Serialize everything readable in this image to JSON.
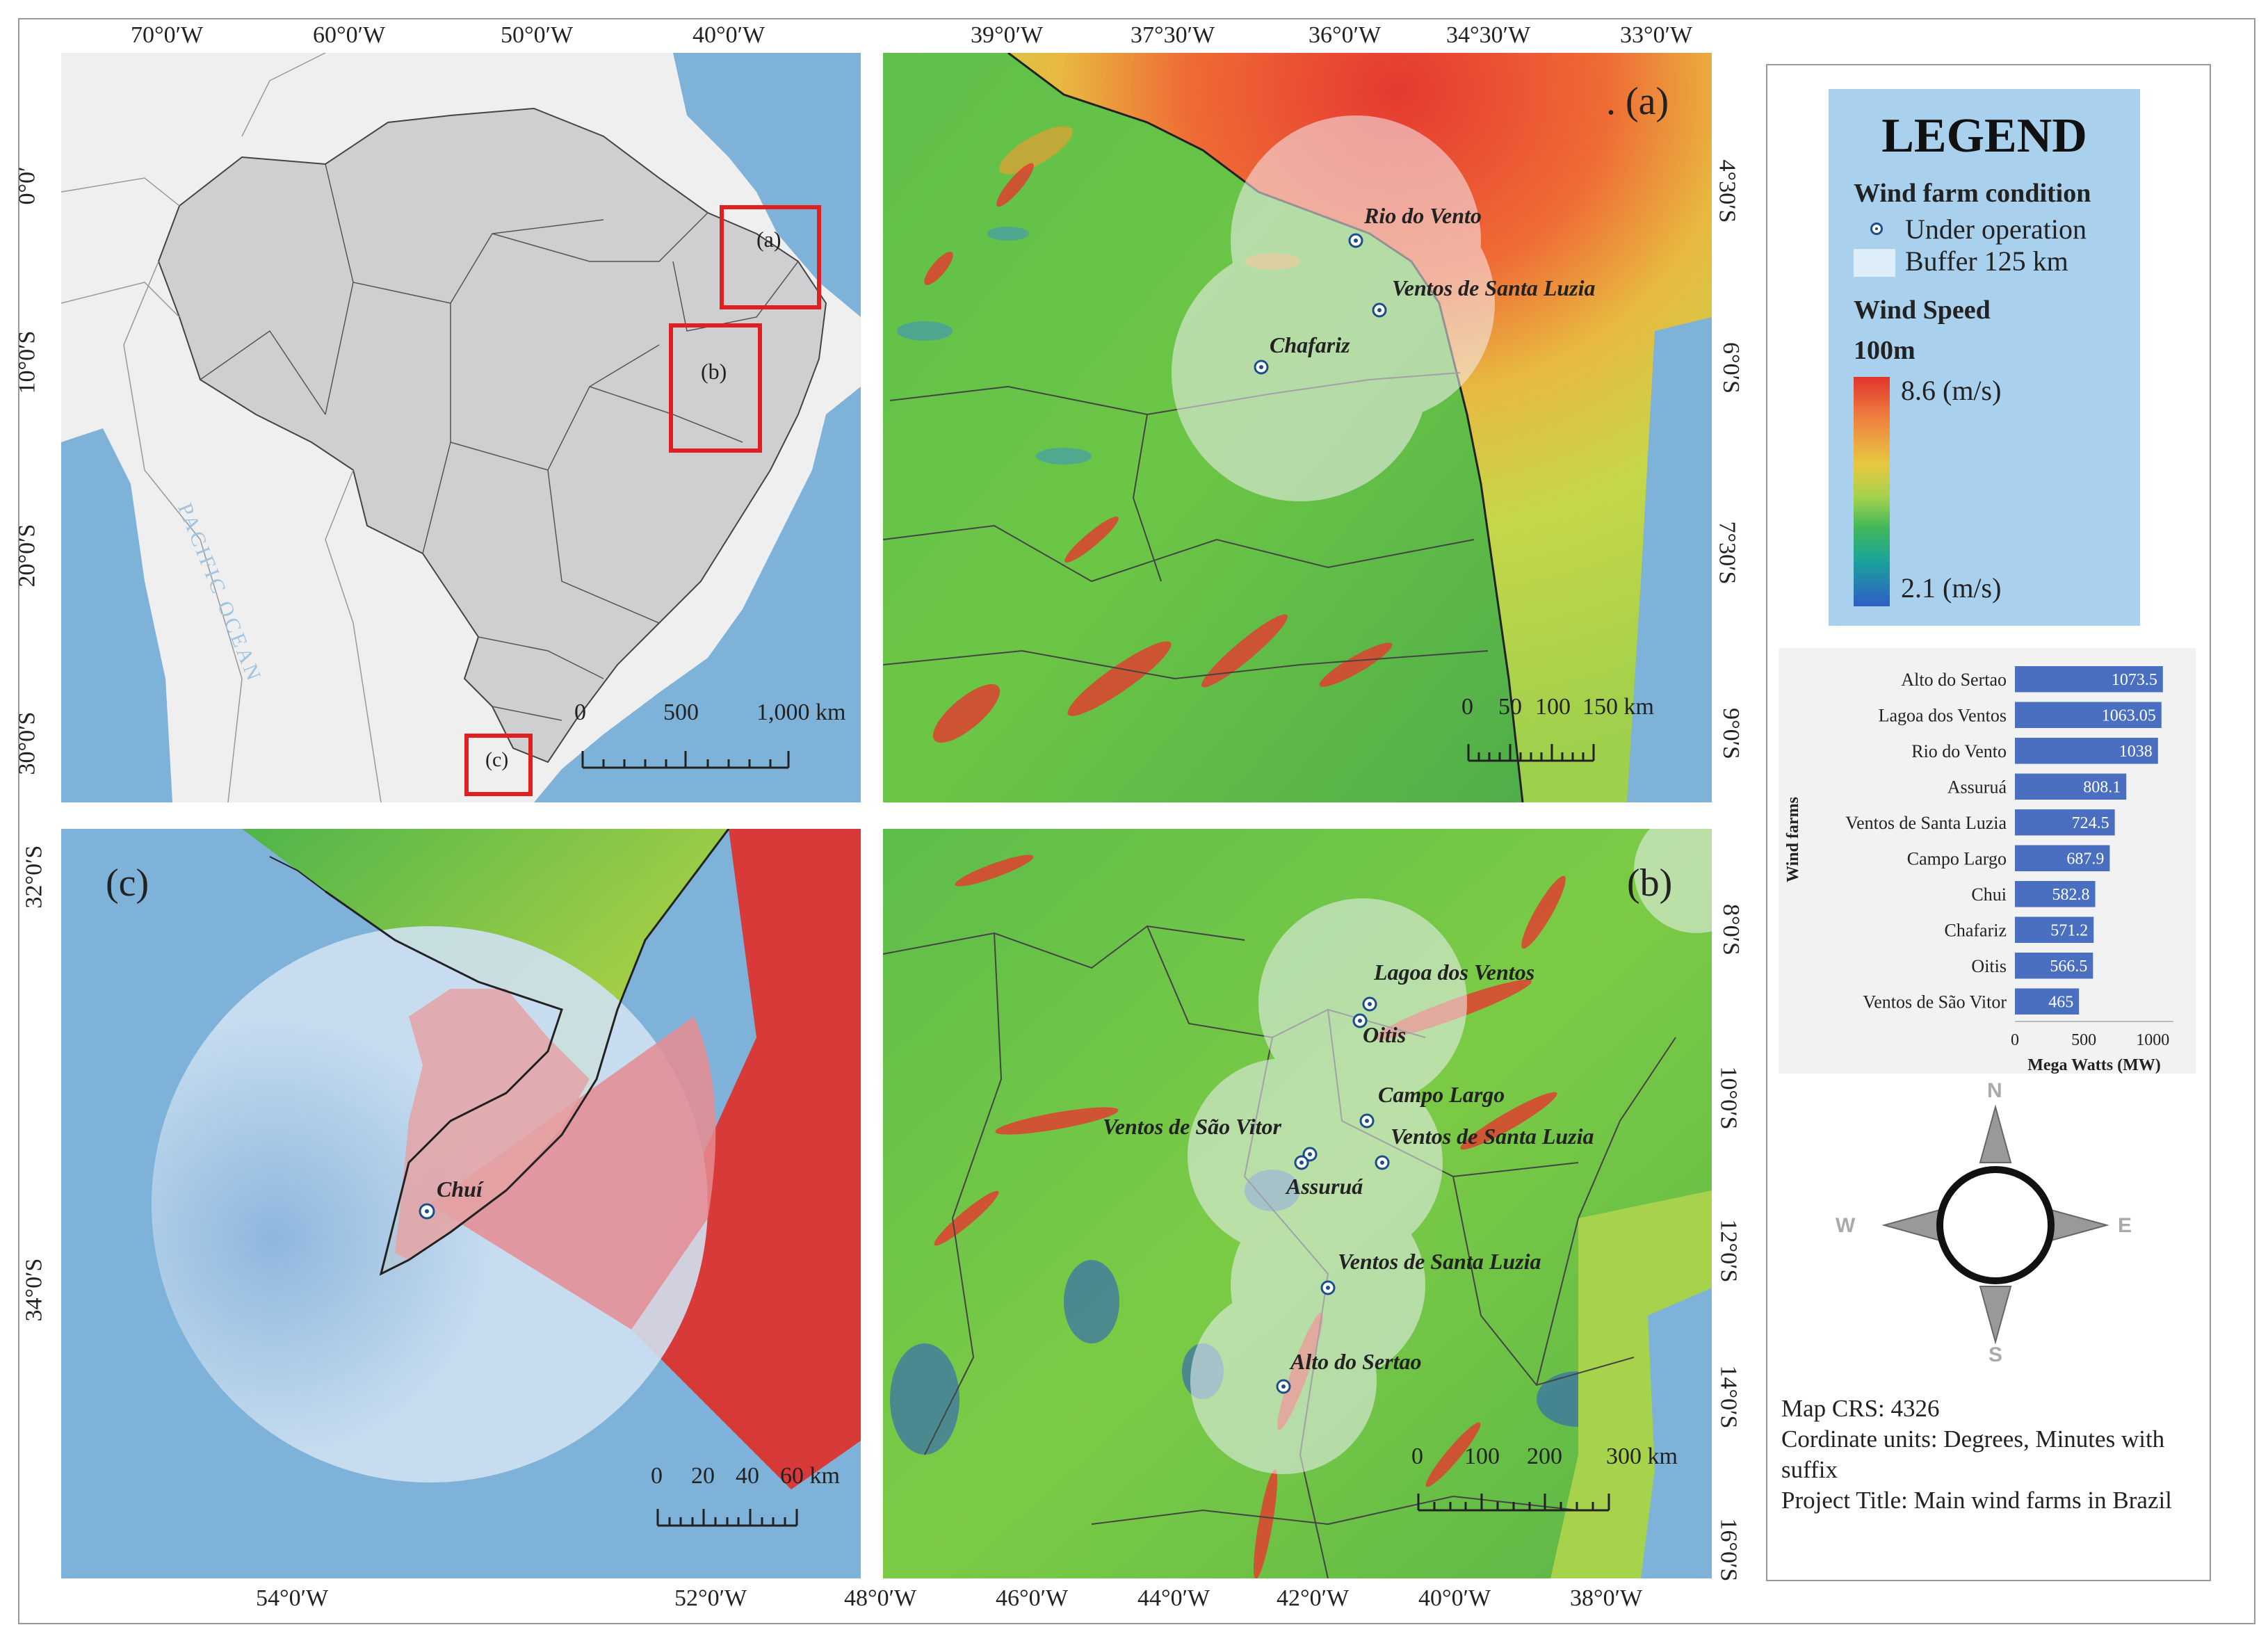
{
  "inset_map": {
    "top_axis": [
      "70°0′W",
      "60°0′W",
      "50°0′W",
      "40°0′W"
    ],
    "left_axis": [
      "0°0′",
      "10°0′S",
      "20°0′S",
      "30°0′S"
    ],
    "ocean_label": "PACIFIC OCEAN",
    "boxes": [
      "(a)",
      "(b)",
      "(c)"
    ],
    "scale": [
      "0",
      "500",
      "1,000 km"
    ]
  },
  "panel_a": {
    "tag": ". (a)",
    "top_axis": [
      "39°0′W",
      "37°30′W",
      "36°0′W",
      "34°30′W",
      "33°0′W"
    ],
    "right_axis": [
      "4°30′S",
      "6°0′S",
      "7°30′S",
      "9°0′S"
    ],
    "farms": [
      "Rio do Vento",
      "Ventos de Santa Luzia",
      "Chafariz"
    ],
    "scale": [
      "0",
      "50",
      "100",
      "150 km"
    ]
  },
  "panel_c": {
    "tag": "(c)",
    "left_axis": [
      "32°0′S",
      "34°0′S"
    ],
    "bottom_axis": [
      "54°0′W",
      "52°0′W"
    ],
    "farms": [
      "Chuí"
    ],
    "scale": [
      "0",
      "20",
      "40",
      "60 km"
    ]
  },
  "panel_b": {
    "tag": "(b)",
    "bottom_axis": [
      "48°0′W",
      "46°0′W",
      "44°0′W",
      "42°0′W",
      "40°0′W",
      "38°0′W"
    ],
    "right_axis": [
      "8°0′S",
      "10°0′S",
      "12°0′S",
      "14°0′S",
      "16°0′S"
    ],
    "farms": [
      "Lagoa dos Ventos",
      "Oitis",
      "Campo Largo",
      "Ventos de São Vitor",
      "Ventos de Santa Luzia",
      "Assuruá",
      "Ventos de Santa Luzia",
      "Alto do Sertao"
    ],
    "scale": [
      "0",
      "100",
      "200",
      "300 km"
    ]
  },
  "legend": {
    "title": "LEGEND",
    "condition_heading": "Wind farm condition",
    "operation_label": "Under operation",
    "buffer_label": "Buffer 125 km",
    "speed_heading": "Wind Speed",
    "height_label": "100m",
    "max_label": "8.6 (m/s)",
    "min_label": "2.1 (m/s)"
  },
  "chart_data": {
    "type": "bar",
    "orientation": "horizontal",
    "categories": [
      "Alto do Sertao",
      "Lagoa dos Ventos",
      "Rio do Vento",
      "Assuruá",
      "Ventos de Santa Luzia",
      "Campo Largo",
      "Chui",
      "Chafariz",
      "Oitis",
      "Ventos de São Vitor"
    ],
    "values": [
      1073.5,
      1063.05,
      1038,
      808.1,
      724.5,
      687.9,
      582.8,
      571.2,
      566.5,
      465
    ],
    "value_labels": [
      "1073.5",
      "1063.05",
      "1038",
      "808.1",
      "724.5",
      "687.9",
      "582.8",
      "571.2",
      "566.5",
      "465"
    ],
    "xlabel": "Mega Watts (MW)",
    "ylabel": "Wind farms",
    "xticks": [
      "0",
      "500",
      "1000"
    ],
    "xlim": [
      0,
      1150
    ],
    "bar_color": "#4a6fc0"
  },
  "compass": {
    "n": "N",
    "s": "S",
    "e": "E",
    "w": "W"
  },
  "info": {
    "crs": "Map CRS: 4326",
    "units": "Cordinate units: Degrees, Minutes with suffix",
    "project": "Project Title: Main wind farms in Brazil"
  }
}
